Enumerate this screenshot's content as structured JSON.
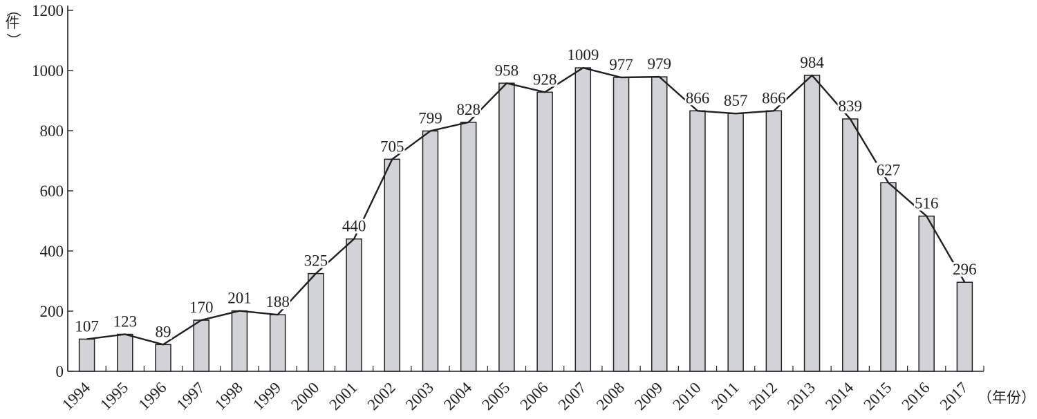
{
  "chart_data": {
    "type": "bar",
    "title": "",
    "xlabel": "（年份）",
    "ylabel": "（件）",
    "categories": [
      "1994",
      "1995",
      "1996",
      "1997",
      "1998",
      "1999",
      "2000",
      "2001",
      "2002",
      "2003",
      "2004",
      "2005",
      "2006",
      "2007",
      "2008",
      "2009",
      "2010",
      "2011",
      "2012",
      "2013",
      "2014",
      "2015",
      "2016",
      "2017"
    ],
    "values": [
      107,
      123,
      89,
      170,
      201,
      188,
      325,
      440,
      705,
      799,
      828,
      958,
      928,
      1009,
      977,
      979,
      866,
      857,
      866,
      984,
      839,
      627,
      516,
      296
    ],
    "overlay_line": true,
    "yticks": [
      "0",
      "200",
      "400",
      "600",
      "800",
      "1000",
      "1200"
    ],
    "ylim": [
      0,
      1200
    ],
    "grid": false,
    "legend": "none",
    "colors": {
      "bar_fill": "#d1d3d4",
      "bar_stroke": "#231f20",
      "line": "#231f20",
      "text": "#231f20"
    }
  }
}
